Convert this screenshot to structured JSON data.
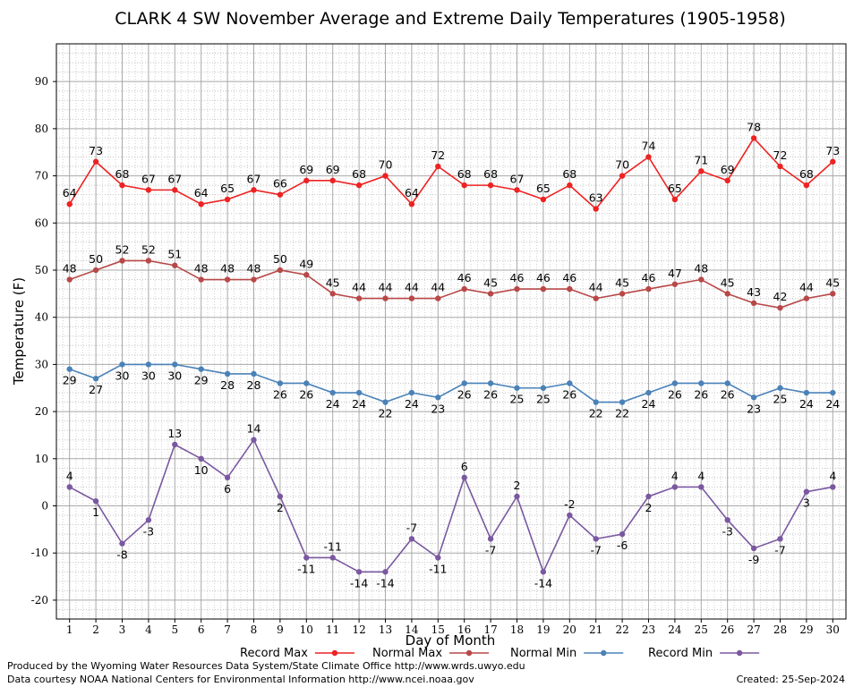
{
  "chart_data": {
    "type": "line",
    "title": "CLARK 4 SW November Average and Extreme Daily Temperatures (1905-1958)",
    "xlabel": "Day of Month",
    "ylabel": "Temperature (F)",
    "x": [
      1,
      2,
      3,
      4,
      5,
      6,
      7,
      8,
      9,
      10,
      11,
      12,
      13,
      14,
      15,
      16,
      17,
      18,
      19,
      20,
      21,
      22,
      23,
      24,
      25,
      26,
      27,
      28,
      29,
      30
    ],
    "xlim": [
      0.5,
      30.5
    ],
    "ylim": [
      -24,
      98
    ],
    "yticks": [
      -20,
      -10,
      0,
      10,
      20,
      30,
      40,
      50,
      60,
      70,
      80,
      90
    ],
    "grid": true,
    "legend_position": "bottom",
    "series": [
      {
        "name": "Record Max",
        "color": "#ee2222",
        "values": [
          64,
          73,
          68,
          67,
          67,
          64,
          65,
          67,
          66,
          69,
          69,
          68,
          70,
          64,
          72,
          68,
          68,
          67,
          65,
          68,
          63,
          70,
          74,
          65,
          71,
          69,
          78,
          72,
          68,
          73
        ]
      },
      {
        "name": "Normal Max",
        "color": "#b84848",
        "values": [
          48,
          50,
          52,
          52,
          51,
          48,
          48,
          48,
          50,
          49,
          45,
          44,
          44,
          44,
          44,
          46,
          45,
          46,
          46,
          46,
          44,
          45,
          46,
          47,
          48,
          45,
          43,
          42,
          44,
          45
        ]
      },
      {
        "name": "Normal Min",
        "color": "#4a82b8",
        "values": [
          29,
          27,
          30,
          30,
          30,
          29,
          28,
          28,
          26,
          26,
          24,
          24,
          22,
          24,
          23,
          26,
          26,
          25,
          25,
          26,
          22,
          22,
          24,
          26,
          26,
          26,
          23,
          25,
          24,
          24
        ]
      },
      {
        "name": "Record Min",
        "color": "#7a58a0",
        "values": [
          4,
          1,
          -8,
          -3,
          13,
          10,
          6,
          14,
          2,
          -11,
          -11,
          -14,
          -14,
          -7,
          -11,
          6,
          -7,
          2,
          -14,
          -2,
          -7,
          -6,
          2,
          4,
          4,
          -3,
          -9,
          -7,
          3,
          4
        ]
      }
    ]
  },
  "footer": {
    "produced_by": "Produced by the Wyoming Water Resources Data System/State Climate Office http://www.wrds.uwyo.edu",
    "courtesy": "Data courtesy NOAA National Centers for Environmental Information http://www.ncei.noaa.gov",
    "created": "Created:  25-Sep-2024"
  }
}
